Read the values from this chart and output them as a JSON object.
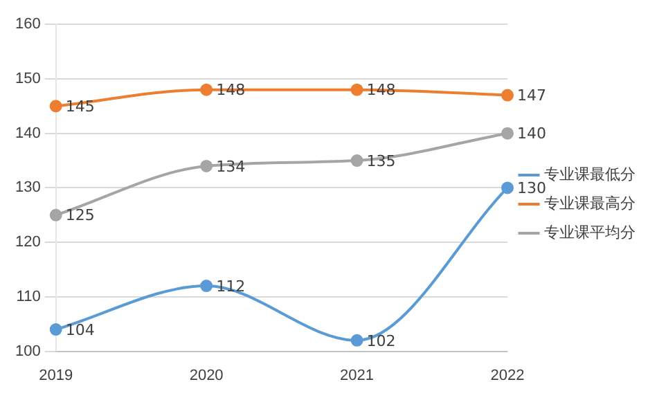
{
  "chart_data": {
    "type": "line",
    "categories": [
      "2019",
      "2020",
      "2021",
      "2022"
    ],
    "series": [
      {
        "name": "专业课最低分",
        "color": "#5b9bd5",
        "values": [
          104,
          112,
          102,
          130
        ]
      },
      {
        "name": "专业课最高分",
        "color": "#ed7d31",
        "values": [
          145,
          148,
          148,
          147
        ]
      },
      {
        "name": "专业课平均分",
        "color": "#a5a5a5",
        "values": [
          125,
          134,
          135,
          140
        ]
      }
    ],
    "ylim": [
      100,
      160
    ],
    "yticks": [
      100,
      110,
      120,
      130,
      140,
      150,
      160
    ],
    "grid": "y",
    "legend": "right",
    "marker": "circle",
    "line_style": "solid",
    "data_labels": true
  }
}
